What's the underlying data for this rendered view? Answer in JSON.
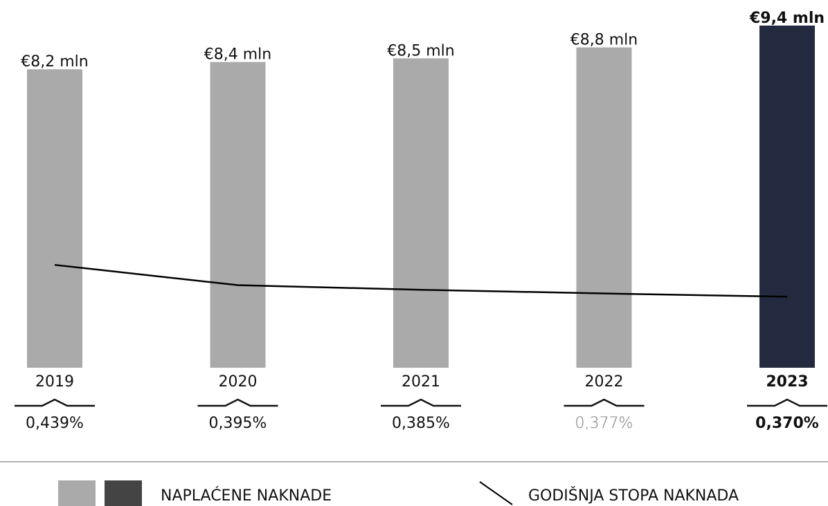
{
  "chart_data": {
    "type": "bar",
    "categories": [
      "2019",
      "2020",
      "2021",
      "2022",
      "2023"
    ],
    "series": [
      {
        "name": "NAPLAĆENE NAKNADE",
        "colors": [
          "#aaaaab",
          "#aaaaab",
          "#aaaaab",
          "#aaaaab",
          "#232a3f"
        ],
        "values": [
          8.2,
          8.4,
          8.5,
          8.8,
          9.4
        ],
        "value_labels": [
          "€8,2 mln",
          "€8,4 mln",
          "€8,5 mln",
          "€8,8 mln",
          "€9,4 mln"
        ]
      },
      {
        "name": "GODIŠNJA STOPA NAKNADA",
        "type": "line",
        "color": "#000000",
        "values": [
          0.439,
          0.395,
          0.385,
          0.377,
          0.37
        ],
        "value_labels": [
          "0,439%",
          "0,395%",
          "0,385%",
          "0,377%",
          "0,370%"
        ]
      }
    ]
  }
}
